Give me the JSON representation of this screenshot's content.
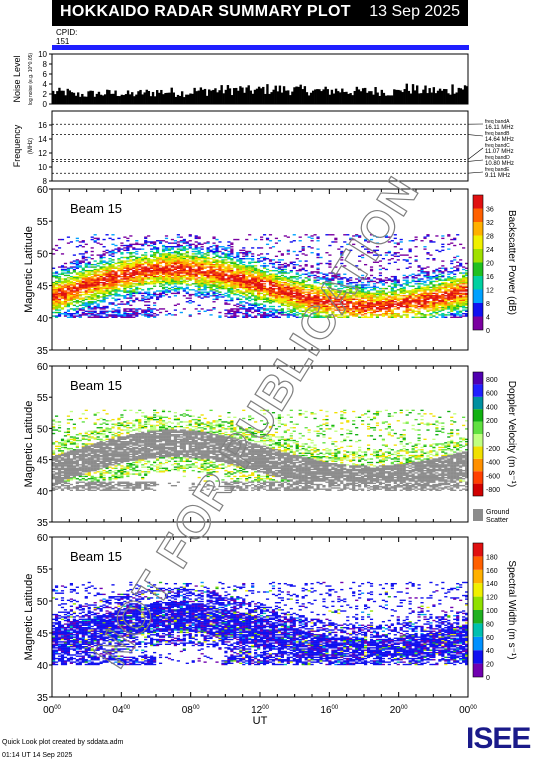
{
  "header": {
    "title": "HOKKAIDO RADAR SUMMARY PLOT",
    "date": "13 Sep 2025"
  },
  "cpid": {
    "label": "CPID:",
    "value": "151"
  },
  "colors": {
    "cpid_bar": "#1f1fff",
    "ground_scatter": "#8c8c8c",
    "noise_bars": "#000000",
    "watermark": "#808080"
  },
  "watermark": "NOT FOR PUBLICATION",
  "footer": {
    "line1": "Quick Look plot created by sddata.adm",
    "line2": "01:14 UT 14 Sep 2025"
  },
  "logo": "ISEE",
  "chart_data": [
    {
      "type": "bar",
      "panel": "noise",
      "ylabel": "Noise Level",
      "ylabel_sub": "log noise (e.g. 10^0.05)",
      "ylim": [
        0,
        10
      ],
      "yticks": [
        "0",
        "2",
        "4",
        "6",
        "8",
        "10"
      ],
      "x_hours": [
        0,
        1,
        2,
        3,
        4,
        5,
        6,
        7,
        8,
        9,
        10,
        11,
        12,
        13,
        14,
        15,
        16,
        17,
        18,
        19,
        20,
        21,
        22,
        23
      ],
      "values": [
        2.6,
        2.1,
        2.3,
        2.4,
        2.2,
        2.5,
        2.7,
        2.5,
        2.9,
        3.1,
        3.2,
        3.0,
        3.3,
        3.2,
        3.1,
        2.9,
        3.0,
        2.8,
        2.9,
        2.7,
        3.4,
        3.0,
        2.9,
        3.6
      ]
    },
    {
      "type": "line",
      "panel": "frequency",
      "ylabel": "Frequency",
      "ylabel_unit": "(MHz)",
      "ylim": [
        8,
        18
      ],
      "yticks": [
        "8",
        "10",
        "12",
        "14",
        "16"
      ],
      "bands": [
        {
          "name": "freq bandA",
          "freq_label": "16.11 MHz",
          "value": 16.11
        },
        {
          "name": "freq bandB",
          "freq_label": "14.64 MHz",
          "value": 14.64
        },
        {
          "name": "freq bandC",
          "freq_label": "11.07 MHz",
          "value": 11.07
        },
        {
          "name": "freq bandD",
          "freq_label": "10.80 MHz",
          "value": 10.8
        },
        {
          "name": "freq bandE",
          "freq_label": "9.11 MHz",
          "value": 9.11
        }
      ]
    },
    {
      "type": "heatmap",
      "panel": "power",
      "beam_label": "Beam 15",
      "ylabel": "Magnetic Latitude",
      "ylim": [
        35,
        60
      ],
      "yticks": [
        "35",
        "40",
        "45",
        "50",
        "55",
        "60"
      ],
      "colorbar_title": "Backscatter Power (dB)",
      "colorbar_ticks": [
        "0",
        "4",
        "8",
        "12",
        "16",
        "20",
        "24",
        "28",
        "32",
        "36"
      ],
      "colors": [
        "#7a00a0",
        "#1010f0",
        "#00a0ff",
        "#00d0a0",
        "#20c020",
        "#a0e000",
        "#f0f000",
        "#ffb000",
        "#ff6000",
        "#e01010"
      ]
    },
    {
      "type": "heatmap",
      "panel": "velocity",
      "beam_label": "Beam 15",
      "ylabel": "Magnetic Latitude",
      "ylim": [
        35,
        60
      ],
      "yticks": [
        "35",
        "40",
        "45",
        "50",
        "55",
        "60"
      ],
      "colorbar_title": "Doppler Velocity (m s⁻¹)",
      "colorbar_ticks": [
        "-800",
        "-600",
        "-400",
        "-200",
        "0",
        "200",
        "400",
        "600",
        "800"
      ],
      "colors": [
        "#d00000",
        "#ff4000",
        "#ff9000",
        "#f0e000",
        "#c0ff80",
        "#60e040",
        "#10b010",
        "#0090a0",
        "#2020ff",
        "#5000b0"
      ],
      "ground_scatter_label": [
        "Ground",
        "Scatter"
      ]
    },
    {
      "type": "heatmap",
      "panel": "width",
      "beam_label": "Beam 15",
      "ylabel": "Magnetic Latitude",
      "ylim": [
        35,
        60
      ],
      "yticks": [
        "35",
        "40",
        "45",
        "50",
        "55",
        "60"
      ],
      "colorbar_title": "Spectral Width (m s⁻¹)",
      "colorbar_ticks": [
        "0",
        "20",
        "40",
        "60",
        "80",
        "100",
        "120",
        "140",
        "160",
        "180"
      ],
      "colors": [
        "#7000b0",
        "#1010f0",
        "#0090ff",
        "#00c0b0",
        "#20b020",
        "#90e000",
        "#f0f000",
        "#ffb000",
        "#ff6000",
        "#e01010"
      ]
    }
  ],
  "xaxis": {
    "label": "UT",
    "ticks": [
      {
        "hour": "00",
        "sup": "00"
      },
      {
        "hour": "04",
        "sup": "00"
      },
      {
        "hour": "08",
        "sup": "00"
      },
      {
        "hour": "12",
        "sup": "00"
      },
      {
        "hour": "16",
        "sup": "00"
      },
      {
        "hour": "20",
        "sup": "00"
      },
      {
        "hour": "00",
        "sup": "00"
      }
    ]
  }
}
